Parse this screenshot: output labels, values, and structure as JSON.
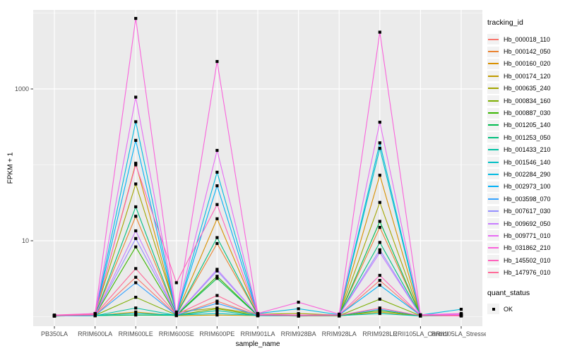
{
  "chart_data": {
    "type": "line",
    "title": "",
    "xlabel": "sample_name",
    "ylabel": "FPKM + 1",
    "y_scale": "log10",
    "y_axis": {
      "major_ticks": [
        {
          "label": "10",
          "value": 10
        },
        {
          "label": "1000",
          "value": 1000
        }
      ],
      "minor_gridlines": [
        1,
        100,
        10000
      ],
      "range": [
        0.75,
        11000
      ]
    },
    "categories": [
      "PB350LA",
      "RRIM600LA",
      "RRIM600LE",
      "RRIM600SE",
      "RRIM600PE",
      "RRIM901LA",
      "RRIM928BA",
      "RRIM928LA",
      "RRIM928LE",
      "RRII105LA_Control",
      "RRII105LA_Stressed"
    ],
    "series": [
      {
        "name": "Hb_000018_110",
        "color": "#F8766D",
        "values": [
          1.03,
          1.04,
          3.3,
          1.05,
          1.6,
          1.04,
          1.03,
          1.03,
          3.0,
          1.03,
          1.04
        ]
      },
      {
        "name": "Hb_000142_050",
        "color": "#EA8331",
        "values": [
          1.03,
          1.05,
          21,
          1.06,
          9.2,
          1.05,
          1.03,
          1.04,
          15,
          1.04,
          1.05
        ]
      },
      {
        "name": "Hb_000160_020",
        "color": "#D89000",
        "values": [
          1.04,
          1.06,
          105,
          1.08,
          19.5,
          1.06,
          1.04,
          1.05,
          73,
          1.04,
          1.06
        ]
      },
      {
        "name": "Hb_000174_120",
        "color": "#C09B00",
        "values": [
          1.02,
          1.03,
          1.15,
          1.03,
          1.05,
          1.03,
          1.02,
          1.02,
          1.15,
          1.02,
          1.03
        ]
      },
      {
        "name": "Hb_000635_240",
        "color": "#A3A500",
        "values": [
          1.03,
          1.1,
          56,
          1.15,
          1.3,
          1.08,
          1.1,
          1.05,
          32,
          1.04,
          1.08
        ]
      },
      {
        "name": "Hb_000834_160",
        "color": "#7CAE00",
        "values": [
          1.02,
          1.04,
          1.8,
          1.05,
          1.27,
          1.04,
          1.03,
          1.03,
          1.7,
          1.03,
          1.05
        ]
      },
      {
        "name": "Hb_000887_030",
        "color": "#39B600",
        "values": [
          1.02,
          1.04,
          8.3,
          1.05,
          3.4,
          1.04,
          1.03,
          1.03,
          1.2,
          1.03,
          1.04
        ]
      },
      {
        "name": "Hb_001205_140",
        "color": "#00BB4E",
        "values": [
          1.02,
          1.03,
          1.05,
          1.04,
          3.2,
          1.03,
          1.02,
          1.03,
          18,
          1.03,
          1.04
        ]
      },
      {
        "name": "Hb_001253_050",
        "color": "#00BF7D",
        "values": [
          1.03,
          1.05,
          28,
          1.06,
          11,
          1.05,
          1.03,
          1.04,
          9.5,
          1.04,
          1.05
        ]
      },
      {
        "name": "Hb_001433_210",
        "color": "#00C1A3",
        "values": [
          1.02,
          1.03,
          1.3,
          1.04,
          1.2,
          1.03,
          1.02,
          1.03,
          1.1,
          1.02,
          1.03
        ]
      },
      {
        "name": "Hb_001546_140",
        "color": "#00BFC4",
        "values": [
          1.03,
          1.04,
          1.1,
          1.05,
          1.1,
          1.04,
          1.03,
          1.04,
          165,
          1.03,
          1.05
        ]
      },
      {
        "name": "Hb_002284_290",
        "color": "#00BAE0",
        "values": [
          1.04,
          1.06,
          370,
          1.08,
          80,
          1.1,
          1.27,
          1.06,
          195,
          1.05,
          1.25
        ]
      },
      {
        "name": "Hb_002973_100",
        "color": "#00B0F6",
        "values": [
          1.03,
          1.05,
          210,
          1.06,
          53,
          1.05,
          1.04,
          1.05,
          2.6,
          1.04,
          1.06
        ]
      },
      {
        "name": "Hb_003598_070",
        "color": "#35A2FF",
        "values": [
          1.02,
          1.04,
          2.8,
          1.05,
          1.5,
          1.04,
          1.03,
          1.04,
          1.25,
          1.03,
          1.05
        ]
      },
      {
        "name": "Hb_007617_030",
        "color": "#9590FF",
        "values": [
          1.03,
          1.05,
          10.7,
          1.06,
          4.0,
          1.05,
          1.04,
          1.05,
          7.6,
          1.04,
          1.06
        ]
      },
      {
        "name": "Hb_009692_050",
        "color": "#C77CFF",
        "values": [
          1.03,
          1.05,
          13.5,
          1.06,
          4.2,
          1.05,
          1.04,
          1.05,
          7.0,
          1.04,
          1.06
        ]
      },
      {
        "name": "Hb_009771_010",
        "color": "#E76BF3",
        "values": [
          1.04,
          1.08,
          780,
          1.1,
          155,
          1.08,
          1.05,
          1.06,
          365,
          1.05,
          1.08
        ]
      },
      {
        "name": "Hb_031862_210",
        "color": "#FA62DB",
        "values": [
          1.05,
          1.1,
          8500,
          1.05,
          2300,
          1.1,
          1.55,
          1.08,
          5600,
          1.06,
          1.1
        ]
      },
      {
        "name": "Hb_145502_010",
        "color": "#FF62BC",
        "values": [
          1.04,
          1.08,
          100,
          2.8,
          30,
          1.06,
          1.04,
          1.05,
          3.5,
          1.04,
          1.02
        ]
      },
      {
        "name": "Hb_147976_010",
        "color": "#FF6A98",
        "values": [
          1.03,
          1.06,
          4.3,
          1.07,
          1.9,
          1.05,
          1.03,
          1.04,
          1.3,
          1.03,
          1.04
        ]
      }
    ],
    "points": {
      "shape": "filled-square",
      "color": "#000000"
    },
    "legends": {
      "tracking": {
        "title": "tracking_id"
      },
      "quant": {
        "title": "quant_status",
        "items": [
          "OK"
        ]
      }
    },
    "layout_hints": {
      "legend_position": "right",
      "grid": true,
      "panel_bg": "#EBEBEB",
      "grid_color": "#FFFFFF",
      "axis_text_color": "#4D4D4D",
      "tick_color": "#333333"
    }
  }
}
